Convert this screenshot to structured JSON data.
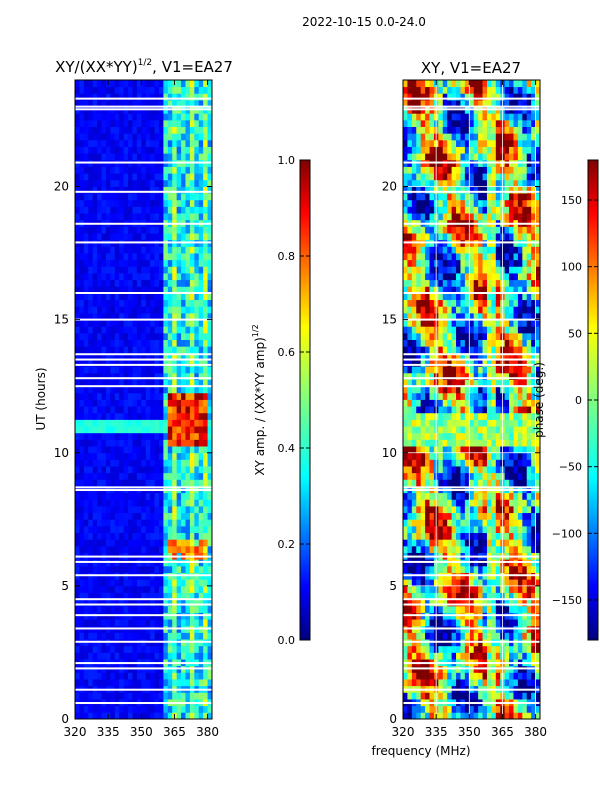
{
  "figure": {
    "suptitle": "2022-10-15 0.0-24.0",
    "xlabel_shared": "frequency (MHz)"
  },
  "chart_data": [
    {
      "type": "heatmap",
      "title": "XY/(XX*YY)",
      "title_sup": "1/2",
      "title_tail": ", V1=EA27",
      "xlabel": "frequency (MHz)",
      "ylabel": "UT (hours)",
      "xlim": [
        320,
        382
      ],
      "ylim": [
        0,
        24
      ],
      "xticks": [
        320,
        335,
        350,
        365,
        380
      ],
      "yticks": [
        0,
        5,
        10,
        15,
        20
      ],
      "colorbar": {
        "label": "XY amp. / (XX*YY amp)",
        "label_sup": "1/2",
        "range": [
          0.0,
          1.0
        ],
        "ticks": [
          "0.0",
          "0.2",
          "0.4",
          "0.6",
          "0.8",
          "1.0"
        ],
        "tick_values": [
          0.0,
          0.2,
          0.4,
          0.6,
          0.8,
          1.0
        ]
      }
    },
    {
      "type": "heatmap",
      "title": "XY, V1=EA27",
      "xlabel": "frequency (MHz)",
      "ylabel": "",
      "xlim": [
        320,
        382
      ],
      "ylim": [
        0,
        24
      ],
      "xticks": [
        320,
        335,
        350,
        365,
        380
      ],
      "yticks": [
        0,
        5,
        10,
        15,
        20
      ],
      "colorbar": {
        "label": "phase (deg.)",
        "range": [
          -180,
          180
        ],
        "ticks": [
          "150",
          "100",
          "50",
          "0",
          "−50",
          "−100",
          "−150"
        ],
        "tick_values": [
          150,
          100,
          50,
          0,
          -50,
          -100,
          -150
        ]
      }
    }
  ],
  "jet_colors": [
    "#00007f",
    "#0000ff",
    "#007fff",
    "#00ffff",
    "#7fff7f",
    "#ffff00",
    "#ff7f00",
    "#ff0000",
    "#7f0000"
  ]
}
